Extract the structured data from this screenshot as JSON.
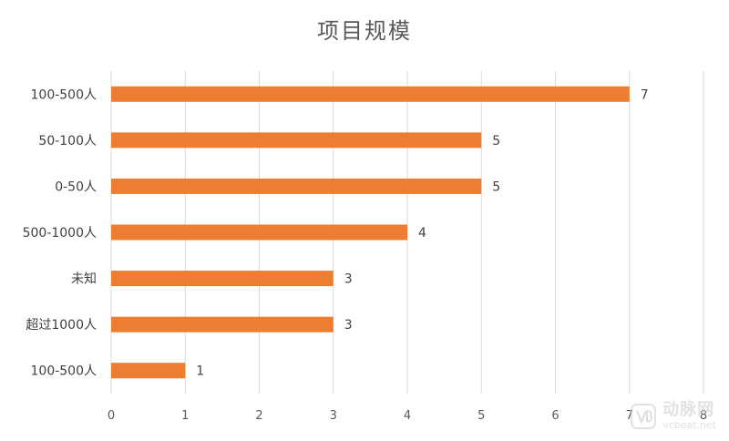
{
  "chart_data": {
    "type": "bar",
    "orientation": "horizontal",
    "title": "项目规模",
    "categories": [
      "100-500人",
      "50-100人",
      "0-50人",
      "500-1000人",
      "未知",
      "超过1000人",
      "100-500人"
    ],
    "values": [
      7,
      5,
      5,
      4,
      3,
      3,
      1
    ],
    "xlim": [
      0,
      8
    ],
    "xticks": [
      "0",
      "1",
      "2",
      "3",
      "4",
      "5",
      "6",
      "7",
      "8"
    ],
    "grid": "vertical",
    "bar_color": "#ED7D31",
    "data_labels": [
      "7",
      "5",
      "5",
      "4",
      "3",
      "3",
      "1"
    ]
  },
  "watermark": {
    "text_cn": "动脉网",
    "text_en": "vcbeat.net"
  }
}
